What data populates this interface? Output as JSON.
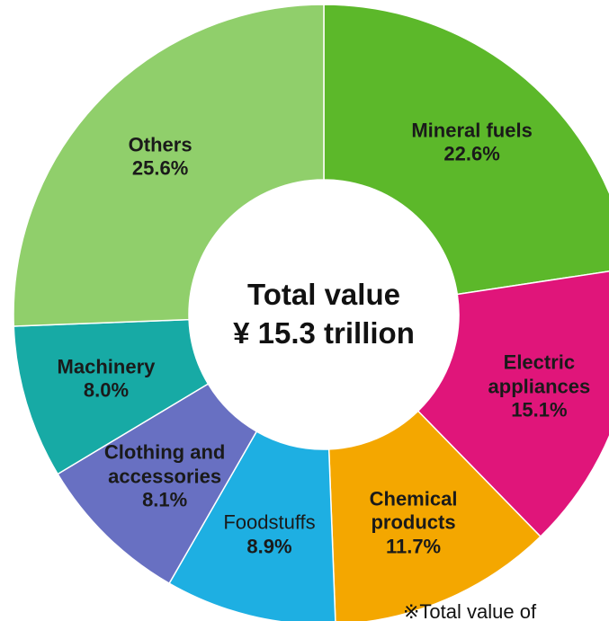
{
  "chart_data": {
    "type": "donut",
    "center_text": [
      "Total value",
      "¥ 15.3 trillion"
    ],
    "categories": [
      "Mineral fuels",
      "Electric appliances",
      "Chemical products",
      "Foodstuffs",
      "Clothing and accessories",
      "Machinery",
      "Others"
    ],
    "values": [
      22.6,
      15.1,
      11.7,
      8.9,
      8.1,
      8.0,
      25.6
    ],
    "value_labels": [
      "22.6%",
      "15.1%",
      "11.7%",
      "8.9%",
      "8.1%",
      "8.0%",
      "25.6%"
    ],
    "colors": [
      "#5cb82a",
      "#e0157a",
      "#f4a700",
      "#1eafe2",
      "#6870c2",
      "#17aaa5",
      "#90cf6b"
    ],
    "note": "※Total value of"
  }
}
